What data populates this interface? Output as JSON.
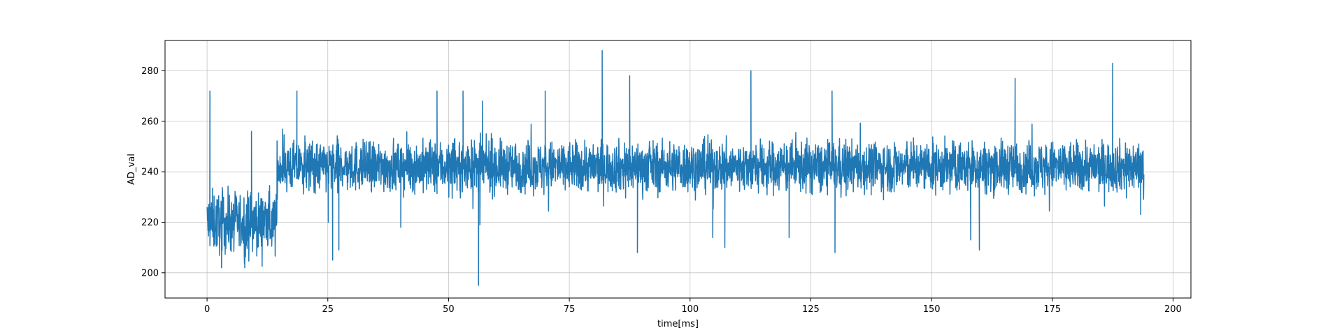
{
  "chart_data": {
    "type": "line",
    "xlabel": "time[ms]",
    "ylabel": "AD_val",
    "xlim": [
      -8.7,
      203.7
    ],
    "ylim": [
      190,
      292
    ],
    "xticks": [
      0,
      25,
      50,
      75,
      100,
      125,
      150,
      175,
      200
    ],
    "xtick_labels": [
      "0",
      "25",
      "50",
      "75",
      "100",
      "125",
      "150",
      "175",
      "200"
    ],
    "yticks": [
      200,
      220,
      240,
      260,
      280
    ],
    "ytick_labels": [
      "200",
      "220",
      "240",
      "260",
      "280"
    ],
    "grid": true,
    "series": [
      {
        "color": "#1f77b4",
        "segments": [
          {
            "x": [
              0,
              14.5
            ],
            "mean": 220,
            "spread": 6
          },
          {
            "x": [
              14.5,
              194
            ],
            "mean": 242,
            "spread": 5
          }
        ],
        "spikes": [
          {
            "x": 0.6,
            "y": 272
          },
          {
            "x": 3.0,
            "y": 202
          },
          {
            "x": 7.8,
            "y": 202
          },
          {
            "x": 9.2,
            "y": 256
          },
          {
            "x": 18.6,
            "y": 272
          },
          {
            "x": 25.1,
            "y": 220
          },
          {
            "x": 26.0,
            "y": 205
          },
          {
            "x": 27.3,
            "y": 209
          },
          {
            "x": 40.1,
            "y": 218
          },
          {
            "x": 47.6,
            "y": 272
          },
          {
            "x": 53.0,
            "y": 272
          },
          {
            "x": 56.2,
            "y": 195
          },
          {
            "x": 56.5,
            "y": 219
          },
          {
            "x": 57.0,
            "y": 268
          },
          {
            "x": 70.0,
            "y": 272
          },
          {
            "x": 81.8,
            "y": 288
          },
          {
            "x": 87.5,
            "y": 278
          },
          {
            "x": 89.1,
            "y": 208
          },
          {
            "x": 104.7,
            "y": 214
          },
          {
            "x": 107.2,
            "y": 210
          },
          {
            "x": 112.6,
            "y": 280
          },
          {
            "x": 120.5,
            "y": 214
          },
          {
            "x": 129.4,
            "y": 272
          },
          {
            "x": 130.0,
            "y": 208
          },
          {
            "x": 158.1,
            "y": 213
          },
          {
            "x": 159.9,
            "y": 209
          },
          {
            "x": 167.3,
            "y": 277
          },
          {
            "x": 187.5,
            "y": 283
          },
          {
            "x": 193.3,
            "y": 223
          }
        ]
      }
    ]
  }
}
